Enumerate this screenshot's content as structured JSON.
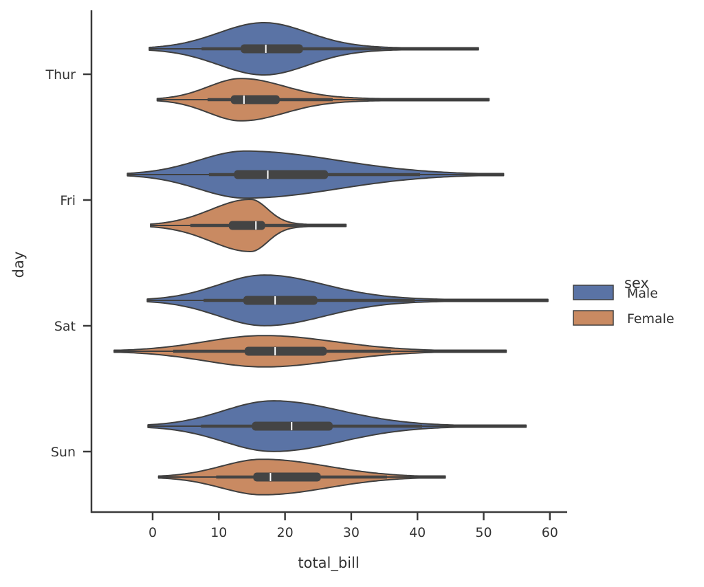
{
  "chart_data": {
    "type": "violin",
    "orientation": "horizontal",
    "title": "",
    "xlabel": "total_bill",
    "ylabel": "day",
    "xlim": [
      -9.2,
      62.5
    ],
    "xticks": [
      0,
      10,
      20,
      30,
      40,
      50,
      60
    ],
    "categories": [
      "Thur",
      "Fri",
      "Sat",
      "Sun"
    ],
    "grid": false,
    "legend": {
      "title": "sex",
      "placement": "right",
      "entries": [
        "Male",
        "Female"
      ]
    },
    "colors": {
      "Male": "#5a73a5",
      "Female": "#c98a62",
      "outline": "#3f3f3f",
      "box": "#444444",
      "median": "#ffffff"
    },
    "series": [
      {
        "name": "Male",
        "violins": [
          {
            "day": "Thur",
            "extent": [
              -0.5,
              49.2
            ],
            "whiskers": [
              7.4,
              34.5
            ],
            "q1": 13.3,
            "median": 17.1,
            "q3": 22.7,
            "mode": 16.8,
            "peak_width": 1.0
          },
          {
            "day": "Fri",
            "extent": [
              -3.8,
              53.0
            ],
            "whiskers": [
              8.5,
              40.4
            ],
            "q1": 12.3,
            "median": 17.4,
            "q3": 26.5,
            "mode": 14.0,
            "peak_width": 0.9
          },
          {
            "day": "Sat",
            "extent": [
              -0.8,
              59.7
            ],
            "whiskers": [
              7.7,
              39.6
            ],
            "q1": 13.7,
            "median": 18.5,
            "q3": 24.9,
            "mode": 16.9,
            "peak_width": 0.97
          },
          {
            "day": "Sun",
            "extent": [
              -0.7,
              56.4
            ],
            "whiskers": [
              7.3,
              40.7
            ],
            "q1": 15.0,
            "median": 21.0,
            "q3": 27.2,
            "mode": 18.2,
            "peak_width": 0.97
          }
        ]
      },
      {
        "name": "Female",
        "violins": [
          {
            "day": "Thur",
            "extent": [
              0.7,
              50.8
            ],
            "whiskers": [
              8.3,
              27.2
            ],
            "q1": 11.8,
            "median": 13.8,
            "q3": 19.2,
            "mode": 13.4,
            "peak_width": 0.81
          },
          {
            "day": "Fri",
            "extent": [
              -0.3,
              29.2
            ],
            "whiskers": [
              5.7,
              22.8
            ],
            "q1": 11.5,
            "median": 15.6,
            "q3": 17.0,
            "mode": 14.8,
            "peak_width": 1.0
          },
          {
            "day": "Sat",
            "extent": [
              -5.8,
              53.4
            ],
            "whiskers": [
              3.1,
              36.0
            ],
            "q1": 13.9,
            "median": 18.5,
            "q3": 26.3,
            "mode": 16.8,
            "peak_width": 0.6
          },
          {
            "day": "Sun",
            "extent": [
              0.9,
              44.2
            ],
            "whiskers": [
              9.6,
              35.4
            ],
            "q1": 15.2,
            "median": 17.8,
            "q3": 25.4,
            "mode": 16.6,
            "peak_width": 0.68
          }
        ]
      }
    ]
  }
}
